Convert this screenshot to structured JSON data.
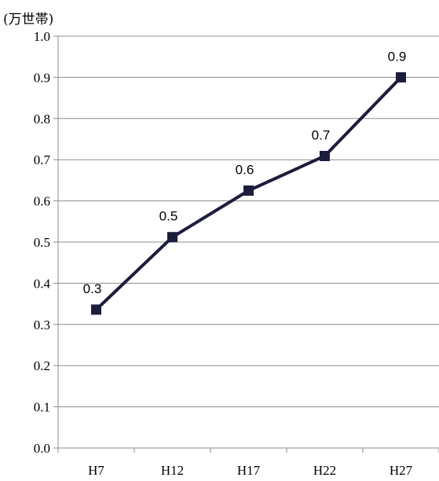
{
  "chart_data": {
    "type": "line",
    "title": "",
    "xlabel": "",
    "ylabel": "(万世帯)",
    "categories": [
      "H7",
      "H12",
      "H17",
      "H22",
      "H27"
    ],
    "series": [
      {
        "values": [
          0.336,
          0.512,
          0.625,
          0.709,
          0.9
        ],
        "data_labels": [
          "0.3",
          "0.5",
          "0.6",
          "0.7",
          "0.9"
        ],
        "color": "#1c1c3d",
        "marker": "square"
      }
    ],
    "ylim": [
      0,
      1.0
    ],
    "yticks": [
      "0.0",
      "0.1",
      "0.2",
      "0.3",
      "0.4",
      "0.5",
      "0.6",
      "0.7",
      "0.8",
      "0.9",
      "1.0"
    ],
    "grid": true,
    "legend": "none"
  }
}
